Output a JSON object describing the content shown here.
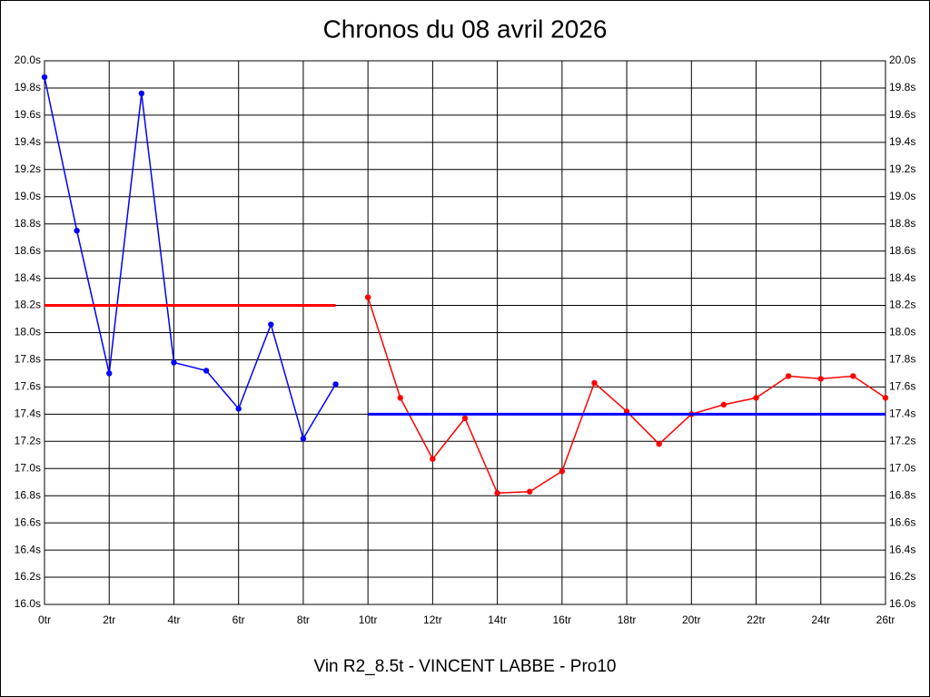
{
  "chart_data": {
    "type": "line",
    "title": "Chronos du 08 avril 2026",
    "x_label": "Vin R2_8.5t - VINCENT LABBE - Pro10",
    "xlim": [
      0,
      26
    ],
    "ylim": [
      16,
      20
    ],
    "xticks": [
      {
        "value": 0,
        "label": "0tr"
      },
      {
        "value": 2,
        "label": "2tr"
      },
      {
        "value": 4,
        "label": "4tr"
      },
      {
        "value": 6,
        "label": "6tr"
      },
      {
        "value": 8,
        "label": "8tr"
      },
      {
        "value": 10,
        "label": "10tr"
      },
      {
        "value": 12,
        "label": "12tr"
      },
      {
        "value": 14,
        "label": "14tr"
      },
      {
        "value": 16,
        "label": "16tr"
      },
      {
        "value": 18,
        "label": "18tr"
      },
      {
        "value": 20,
        "label": "20tr"
      },
      {
        "value": 22,
        "label": "22tr"
      },
      {
        "value": 24,
        "label": "24tr"
      },
      {
        "value": 26,
        "label": "26tr"
      }
    ],
    "yticks": [
      {
        "value": 16.0,
        "label": "16.0s"
      },
      {
        "value": 16.2,
        "label": "16.2s"
      },
      {
        "value": 16.4,
        "label": "16.4s"
      },
      {
        "value": 16.6,
        "label": "16.6s"
      },
      {
        "value": 16.8,
        "label": "16.8s"
      },
      {
        "value": 17.0,
        "label": "17.0s"
      },
      {
        "value": 17.2,
        "label": "17.2s"
      },
      {
        "value": 17.4,
        "label": "17.4s"
      },
      {
        "value": 17.6,
        "label": "17.6s"
      },
      {
        "value": 17.8,
        "label": "17.8s"
      },
      {
        "value": 18.0,
        "label": "18.0s"
      },
      {
        "value": 18.2,
        "label": "18.2s"
      },
      {
        "value": 18.4,
        "label": "18.4s"
      },
      {
        "value": 18.6,
        "label": "18.6s"
      },
      {
        "value": 18.8,
        "label": "18.8s"
      },
      {
        "value": 19.0,
        "label": "19.0s"
      },
      {
        "value": 19.2,
        "label": "19.2s"
      },
      {
        "value": 19.4,
        "label": "19.4s"
      },
      {
        "value": 19.6,
        "label": "19.6s"
      },
      {
        "value": 19.8,
        "label": "19.8s"
      },
      {
        "value": 20.0,
        "label": "20.0s"
      }
    ],
    "grid": true,
    "series": [
      {
        "color": "#0000ff",
        "markers": true,
        "x": [
          0,
          1,
          2,
          3,
          4,
          5,
          6,
          7,
          8,
          9
        ],
        "values": [
          19.88,
          18.75,
          17.7,
          19.76,
          17.78,
          17.72,
          17.44,
          18.06,
          17.22,
          17.62
        ]
      },
      {
        "color": "#ff0000",
        "markers": true,
        "x": [
          10,
          11,
          12,
          13,
          14,
          15,
          16,
          17,
          18,
          19,
          20,
          21,
          22,
          23,
          24,
          25,
          26
        ],
        "values": [
          18.26,
          17.52,
          17.07,
          17.37,
          16.82,
          16.83,
          16.98,
          17.63,
          17.42,
          17.18,
          17.4,
          17.47,
          17.52,
          17.68,
          17.66,
          17.68,
          17.52
        ]
      },
      {
        "color": "#ff0000",
        "markers": false,
        "x": [
          0,
          9
        ],
        "values": [
          18.2,
          18.2
        ]
      },
      {
        "color": "#0000ff",
        "markers": false,
        "x": [
          10,
          26
        ],
        "values": [
          17.4,
          17.4
        ]
      }
    ]
  }
}
